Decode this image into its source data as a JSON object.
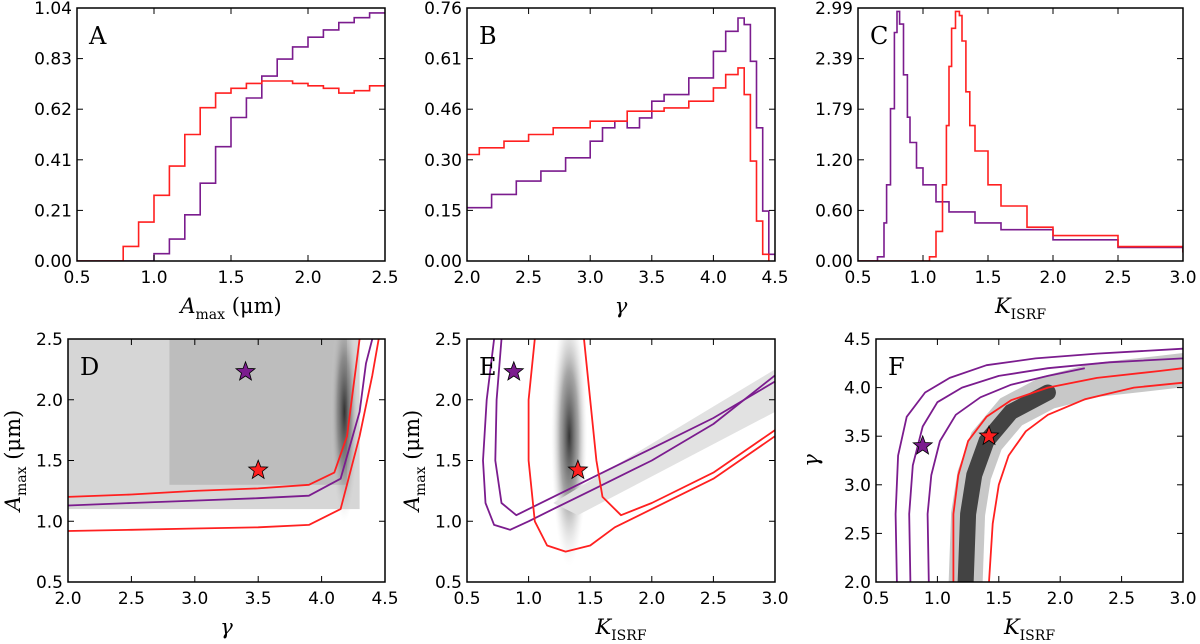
{
  "colors": {
    "purple": "#7b1c8e",
    "red": "#ff2020",
    "axis": "#000000"
  },
  "chart_data": [
    {
      "id": "A",
      "type": "line",
      "panel_label": "A",
      "xlabel": "Amax (μm)",
      "xlabel_main": "A",
      "xlabel_sub": "max",
      "xlabel_tail": " (μm)",
      "ylabel": "",
      "xlim": [
        0.5,
        2.5
      ],
      "ylim": [
        0,
        1.04
      ],
      "xticks": [
        "0.5",
        "1.0",
        "1.5",
        "2.0",
        "2.5"
      ],
      "yticks": [
        "0.00",
        "0.21",
        "0.41",
        "0.62",
        "0.83",
        "1.04"
      ],
      "series": [
        {
          "name": "purple",
          "color": "purple",
          "x": [
            0.5,
            0.9,
            1.0,
            1.1,
            1.2,
            1.3,
            1.4,
            1.5,
            1.6,
            1.7,
            1.8,
            1.9,
            2.0,
            2.1,
            2.2,
            2.3,
            2.4,
            2.5
          ],
          "y": [
            0,
            0,
            0.03,
            0.09,
            0.19,
            0.32,
            0.47,
            0.59,
            0.67,
            0.76,
            0.83,
            0.88,
            0.92,
            0.95,
            0.98,
            1.0,
            1.02,
            1.02
          ]
        },
        {
          "name": "red",
          "color": "red",
          "x": [
            0.5,
            0.7,
            0.8,
            0.9,
            1.0,
            1.1,
            1.2,
            1.3,
            1.4,
            1.5,
            1.6,
            1.7,
            1.8,
            1.9,
            2.0,
            2.1,
            2.2,
            2.3,
            2.4,
            2.5
          ],
          "y": [
            0,
            0,
            0.06,
            0.16,
            0.27,
            0.39,
            0.52,
            0.63,
            0.69,
            0.71,
            0.73,
            0.74,
            0.74,
            0.73,
            0.72,
            0.71,
            0.69,
            0.7,
            0.72,
            0.73
          ]
        }
      ]
    },
    {
      "id": "B",
      "type": "line",
      "panel_label": "B",
      "xlabel": "γ",
      "xlabel_main": "γ",
      "xlabel_sub": "",
      "xlabel_tail": "",
      "ylabel": "",
      "xlim": [
        2.0,
        4.5
      ],
      "ylim": [
        0,
        0.76
      ],
      "xticks": [
        "2.0",
        "2.5",
        "3.0",
        "3.5",
        "4.0",
        "4.5"
      ],
      "yticks": [
        "0.00",
        "0.15",
        "0.30",
        "0.46",
        "0.61",
        "0.76"
      ],
      "series": [
        {
          "name": "purple",
          "color": "purple",
          "x": [
            2.0,
            2.2,
            2.4,
            2.6,
            2.8,
            3.0,
            3.1,
            3.2,
            3.3,
            3.4,
            3.5,
            3.6,
            3.8,
            4.0,
            4.1,
            4.2,
            4.25,
            4.3,
            4.35,
            4.4,
            4.45,
            4.5
          ],
          "y": [
            0.16,
            0.2,
            0.24,
            0.27,
            0.31,
            0.36,
            0.4,
            0.42,
            0.4,
            0.43,
            0.48,
            0.5,
            0.55,
            0.63,
            0.69,
            0.73,
            0.71,
            0.6,
            0.4,
            0.15,
            0.02,
            0
          ]
        },
        {
          "name": "red",
          "color": "red",
          "x": [
            2.0,
            2.1,
            2.3,
            2.5,
            2.7,
            3.0,
            3.3,
            3.5,
            3.6,
            3.8,
            4.0,
            4.1,
            4.2,
            4.25,
            4.3,
            4.35,
            4.4,
            4.45
          ],
          "y": [
            0.32,
            0.34,
            0.36,
            0.38,
            0.4,
            0.42,
            0.45,
            0.45,
            0.46,
            0.48,
            0.52,
            0.56,
            0.58,
            0.5,
            0.3,
            0.12,
            0.02,
            0
          ]
        }
      ]
    },
    {
      "id": "C",
      "type": "line",
      "panel_label": "C",
      "xlabel": "KISRF",
      "xlabel_main": "K",
      "xlabel_sub": "ISRF",
      "xlabel_tail": "",
      "ylabel": "",
      "xlim": [
        0.5,
        3.0
      ],
      "ylim": [
        0,
        2.99
      ],
      "xticks": [
        "0.5",
        "1.0",
        "1.5",
        "2.0",
        "2.5",
        "3.0"
      ],
      "yticks": [
        "0.00",
        "0.60",
        "1.20",
        "1.79",
        "2.39",
        "2.99"
      ],
      "series": [
        {
          "name": "purple",
          "color": "purple",
          "x": [
            0.5,
            0.6,
            0.65,
            0.7,
            0.72,
            0.75,
            0.78,
            0.8,
            0.82,
            0.85,
            0.88,
            0.9,
            0.95,
            1.0,
            1.1,
            1.2,
            1.4,
            1.6,
            2.0,
            2.5,
            3.0
          ],
          "y": [
            0,
            0,
            0.05,
            0.45,
            0.9,
            1.8,
            2.7,
            2.95,
            2.8,
            2.2,
            1.7,
            1.4,
            1.1,
            0.9,
            0.7,
            0.58,
            0.45,
            0.37,
            0.25,
            0.16,
            0.1
          ]
        },
        {
          "name": "red",
          "color": "red",
          "x": [
            0.5,
            1.0,
            1.05,
            1.1,
            1.15,
            1.18,
            1.2,
            1.22,
            1.25,
            1.28,
            1.3,
            1.33,
            1.36,
            1.4,
            1.5,
            1.6,
            1.8,
            2.0,
            2.5,
            3.0
          ],
          "y": [
            0,
            0,
            0.05,
            0.35,
            0.9,
            1.6,
            2.3,
            2.75,
            2.95,
            2.9,
            2.6,
            2.0,
            1.6,
            1.3,
            0.9,
            0.65,
            0.4,
            0.3,
            0.17,
            0.1
          ]
        }
      ]
    },
    {
      "id": "D",
      "type": "heatmap",
      "panel_label": "D",
      "xlabel": "γ",
      "xlabel_main": "γ",
      "xlabel_sub": "",
      "xlabel_tail": "",
      "ylabel": "Amax (μm)",
      "ylabel_main": "A",
      "ylabel_sub": "max",
      "ylabel_tail": " (μm)",
      "xlim": [
        2.0,
        4.5
      ],
      "ylim": [
        0.5,
        2.5
      ],
      "xticks": [
        "2.0",
        "2.5",
        "3.0",
        "3.5",
        "4.0",
        "4.5"
      ],
      "yticks": [
        "0.5",
        "1.0",
        "1.5",
        "2.0",
        "2.5"
      ],
      "stars": [
        {
          "x": 3.4,
          "y": 2.23,
          "color": "purple"
        },
        {
          "x": 3.5,
          "y": 1.42,
          "color": "red"
        }
      ],
      "contours": [
        {
          "color": "purple",
          "x": [
            2.0,
            2.5,
            3.0,
            3.5,
            3.9,
            4.15,
            4.3,
            4.35,
            4.4
          ],
          "y": [
            1.13,
            1.15,
            1.17,
            1.19,
            1.21,
            1.35,
            1.9,
            2.3,
            2.5
          ]
        },
        {
          "color": "red",
          "x": [
            2.0,
            2.5,
            3.0,
            3.5,
            3.9,
            4.15,
            4.3,
            4.4,
            4.45
          ],
          "y": [
            0.92,
            0.93,
            0.94,
            0.95,
            0.97,
            1.1,
            1.7,
            2.2,
            2.5
          ]
        },
        {
          "color": "red",
          "x": [
            2.0,
            2.5,
            3.0,
            3.5,
            3.9,
            4.1,
            4.2,
            4.25,
            4.3
          ],
          "y": [
            1.2,
            1.22,
            1.25,
            1.27,
            1.3,
            1.4,
            1.7,
            2.1,
            2.5
          ]
        }
      ]
    },
    {
      "id": "E",
      "type": "heatmap",
      "panel_label": "E",
      "xlabel": "KISRF",
      "xlabel_main": "K",
      "xlabel_sub": "ISRF",
      "xlabel_tail": "",
      "ylabel": "Amax (μm)",
      "ylabel_main": "A",
      "ylabel_sub": "max",
      "ylabel_tail": " (μm)",
      "xlim": [
        0.5,
        3.0
      ],
      "ylim": [
        0.5,
        2.5
      ],
      "xticks": [
        "0.5",
        "1.0",
        "1.5",
        "2.0",
        "2.5",
        "3.0"
      ],
      "yticks": [
        "0.5",
        "1.0",
        "1.5",
        "2.0",
        "2.5"
      ],
      "stars": [
        {
          "x": 0.88,
          "y": 2.23,
          "color": "purple"
        },
        {
          "x": 1.4,
          "y": 1.42,
          "color": "red"
        }
      ],
      "contours": [
        {
          "color": "purple",
          "x": [
            0.72,
            0.66,
            0.63,
            0.65,
            0.72,
            0.85,
            1.0,
            1.2,
            1.5,
            2.0,
            2.5,
            3.0
          ],
          "y": [
            2.5,
            2.0,
            1.5,
            1.15,
            0.97,
            0.93,
            1.0,
            1.1,
            1.25,
            1.5,
            1.8,
            2.2
          ]
        },
        {
          "color": "purple",
          "x": [
            0.78,
            0.74,
            0.73,
            0.78,
            0.9,
            1.0,
            1.2,
            1.5,
            2.0,
            2.5,
            3.0
          ],
          "y": [
            2.5,
            2.0,
            1.5,
            1.15,
            1.05,
            1.1,
            1.2,
            1.35,
            1.6,
            1.85,
            2.15
          ]
        },
        {
          "color": "red",
          "x": [
            1.05,
            1.0,
            1.0,
            1.05,
            1.15,
            1.3,
            1.5,
            1.7,
            2.0,
            2.5,
            3.0
          ],
          "y": [
            2.5,
            2.0,
            1.5,
            1.0,
            0.8,
            0.75,
            0.8,
            0.95,
            1.1,
            1.35,
            1.7
          ]
        },
        {
          "color": "red",
          "x": [
            1.45,
            1.5,
            1.55,
            1.6,
            1.75,
            2.0,
            2.5,
            3.0
          ],
          "y": [
            2.5,
            2.0,
            1.5,
            1.2,
            1.05,
            1.15,
            1.4,
            1.75
          ]
        }
      ]
    },
    {
      "id": "F",
      "type": "heatmap",
      "panel_label": "F",
      "xlabel": "KISRF",
      "xlabel_main": "K",
      "xlabel_sub": "ISRF",
      "xlabel_tail": "",
      "ylabel": "γ",
      "ylabel_main": "γ",
      "ylabel_sub": "",
      "ylabel_tail": "",
      "xlim": [
        0.5,
        3.0
      ],
      "ylim": [
        2.0,
        4.5
      ],
      "xticks": [
        "0.5",
        "1.0",
        "1.5",
        "2.0",
        "2.5",
        "3.0"
      ],
      "yticks": [
        "2.0",
        "2.5",
        "3.0",
        "3.5",
        "4.0",
        "4.5"
      ],
      "stars": [
        {
          "x": 0.88,
          "y": 3.4,
          "color": "purple"
        },
        {
          "x": 1.42,
          "y": 3.5,
          "color": "red"
        }
      ],
      "contours": [
        {
          "color": "purple",
          "x": [
            0.67,
            0.66,
            0.68,
            0.75,
            0.9,
            1.1,
            1.4,
            1.8,
            2.3,
            3.0
          ],
          "y": [
            2.0,
            2.7,
            3.3,
            3.7,
            3.95,
            4.1,
            4.23,
            4.3,
            4.35,
            4.4
          ]
        },
        {
          "color": "purple",
          "x": [
            0.78,
            0.77,
            0.8,
            0.88,
            1.0,
            1.2,
            1.5,
            1.9,
            2.4,
            3.0
          ],
          "y": [
            2.0,
            2.7,
            3.2,
            3.6,
            3.85,
            4.0,
            4.12,
            4.2,
            4.26,
            4.3
          ]
        },
        {
          "color": "purple",
          "x": [
            0.93,
            0.92,
            0.95,
            1.02,
            1.15,
            1.35,
            1.6,
            1.9,
            2.2
          ],
          "y": [
            2.0,
            2.7,
            3.1,
            3.45,
            3.72,
            3.9,
            4.03,
            4.12,
            4.2
          ]
        },
        {
          "color": "red",
          "x": [
            1.13,
            1.13,
            1.17,
            1.25,
            1.4,
            1.6,
            1.9,
            2.3,
            2.8,
            3.0
          ],
          "y": [
            2.0,
            2.7,
            3.1,
            3.45,
            3.7,
            3.87,
            4.0,
            4.1,
            4.17,
            4.2
          ]
        },
        {
          "color": "red",
          "x": [
            1.42,
            1.45,
            1.5,
            1.58,
            1.72,
            1.9,
            2.2,
            2.6,
            3.0
          ],
          "y": [
            2.0,
            2.6,
            3.0,
            3.3,
            3.55,
            3.72,
            3.88,
            4.0,
            4.05
          ]
        }
      ]
    }
  ]
}
